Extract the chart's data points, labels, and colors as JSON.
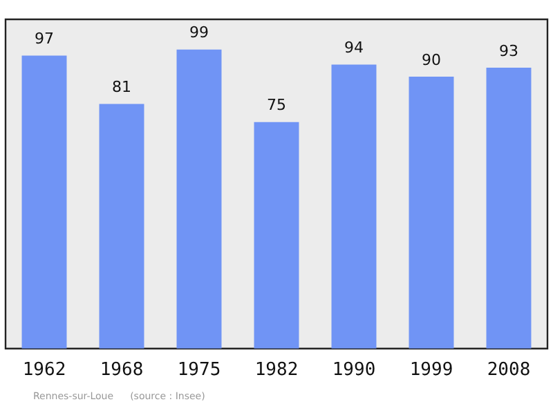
{
  "chart_data": {
    "type": "bar",
    "categories": [
      "1962",
      "1968",
      "1975",
      "1982",
      "1990",
      "1999",
      "2008"
    ],
    "values": [
      97,
      81,
      99,
      75,
      94,
      90,
      93
    ],
    "color": "#7094f5",
    "ylim": [
      0,
      109
    ],
    "data_labels": true,
    "grid": false,
    "legend": false,
    "tick_labels": "x",
    "annotations": [
      "Rennes-sur-Loue",
      "(source : Insee)"
    ]
  }
}
